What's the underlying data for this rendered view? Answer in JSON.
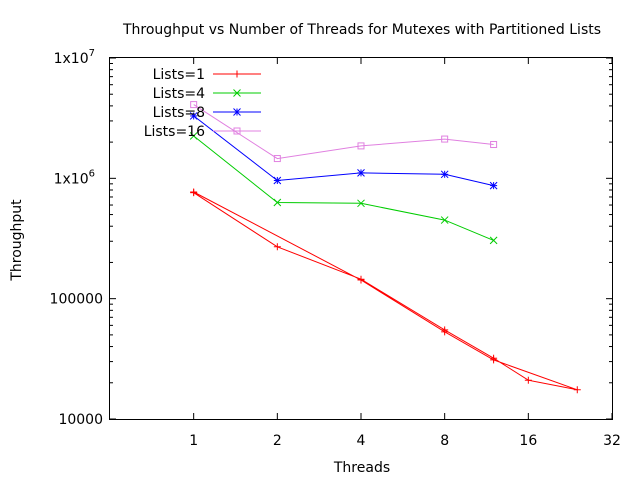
{
  "chart_data": {
    "type": "line",
    "title": "Throughput vs Number of Threads for Mutexes with Partitioned Lists",
    "xlabel": "Threads",
    "ylabel": "Throughput",
    "x_scale": "log2",
    "y_scale": "log10",
    "xlim": [
      0.5,
      32
    ],
    "ylim": [
      10000,
      10000000
    ],
    "x_ticks": [
      {
        "value": 1,
        "label": "1"
      },
      {
        "value": 2,
        "label": "2"
      },
      {
        "value": 4,
        "label": "4"
      },
      {
        "value": 8,
        "label": "8"
      },
      {
        "value": 16,
        "label": "16"
      },
      {
        "value": 32,
        "label": "32"
      }
    ],
    "y_ticks": [
      {
        "value": 10000,
        "label": "10000"
      },
      {
        "value": 100000,
        "label": "100000"
      },
      {
        "value": 1000000,
        "label": "1x10",
        "sup": "6"
      },
      {
        "value": 10000000,
        "label": "1x10",
        "sup": "7"
      }
    ],
    "legend_position": "top-left",
    "grid": false,
    "series": [
      {
        "name": "Lists=1",
        "color": "#ff0000",
        "marker": "plus",
        "points": [
          [
            1,
            760000
          ],
          [
            2,
            270000
          ],
          [
            4,
            145000
          ],
          [
            8,
            55000
          ],
          [
            12,
            32000
          ],
          [
            16,
            21000
          ],
          [
            24,
            17500
          ],
          [
            12,
            31000
          ],
          [
            8,
            53000
          ],
          [
            4,
            143000
          ],
          [
            1,
            770000
          ]
        ]
      },
      {
        "name": "Lists=4",
        "color": "#00cc00",
        "marker": "cross",
        "points": [
          [
            1,
            2250000
          ],
          [
            2,
            630000
          ],
          [
            4,
            620000
          ],
          [
            8,
            450000
          ],
          [
            12,
            305000
          ]
        ]
      },
      {
        "name": "Lists=8",
        "color": "#0000ff",
        "marker": "star",
        "points": [
          [
            1,
            3300000
          ],
          [
            2,
            960000
          ],
          [
            4,
            1110000
          ],
          [
            8,
            1080000
          ],
          [
            12,
            870000
          ]
        ]
      },
      {
        "name": "Lists=16",
        "color": "#e080e0",
        "marker": "square",
        "points": [
          [
            1,
            4100000
          ],
          [
            2,
            1460000
          ],
          [
            4,
            1860000
          ],
          [
            8,
            2120000
          ],
          [
            12,
            1910000
          ]
        ]
      }
    ]
  }
}
